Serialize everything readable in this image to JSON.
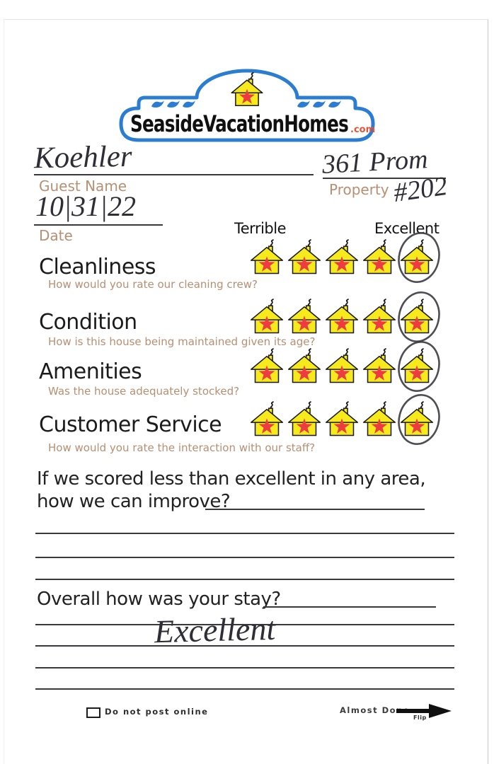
{
  "logo": {
    "brand": "SeasideVacationHomes",
    "tld": ".com"
  },
  "header_fields": {
    "guest_name": {
      "label": "Guest Name",
      "value": "Koehler"
    },
    "property": {
      "label": "Property",
      "value": "361 Prom",
      "value2": "#202"
    },
    "date": {
      "label": "Date",
      "value": "10|31|22"
    }
  },
  "scale": {
    "left": "Terrible",
    "right": "Excellent"
  },
  "ratings": [
    {
      "category": "Cleanliness",
      "question": "How would you rate our cleaning crew?",
      "score": 5,
      "max": 5
    },
    {
      "category": "Condition",
      "question": "How is this house being maintained given its age?",
      "score": 5,
      "max": 5
    },
    {
      "category": "Amenities",
      "question": "Was the house adequately stocked?",
      "score": 5,
      "max": 5
    },
    {
      "category": "Customer Service",
      "question": "How would you rate the interaction with our staff?",
      "score": 5,
      "max": 5
    }
  ],
  "improve_question": {
    "line1": "If we scored less than excellent in any area,",
    "line2": "how we can improve?",
    "answer": ""
  },
  "overall_question": {
    "label": "Overall how was your stay?",
    "answer": "Excellent"
  },
  "footer": {
    "checkbox_label": "Do not post online",
    "checkbox_checked": false,
    "almost_done": "Almost Done",
    "flip": "Flip"
  },
  "colors": {
    "logo_blue": "#2b7dd2",
    "house_yellow": "#f7ea1c",
    "star_red": "#ee3a43",
    "com_red": "#e65436",
    "label_tan": "#b78f73",
    "ink": "#2f2e36"
  }
}
